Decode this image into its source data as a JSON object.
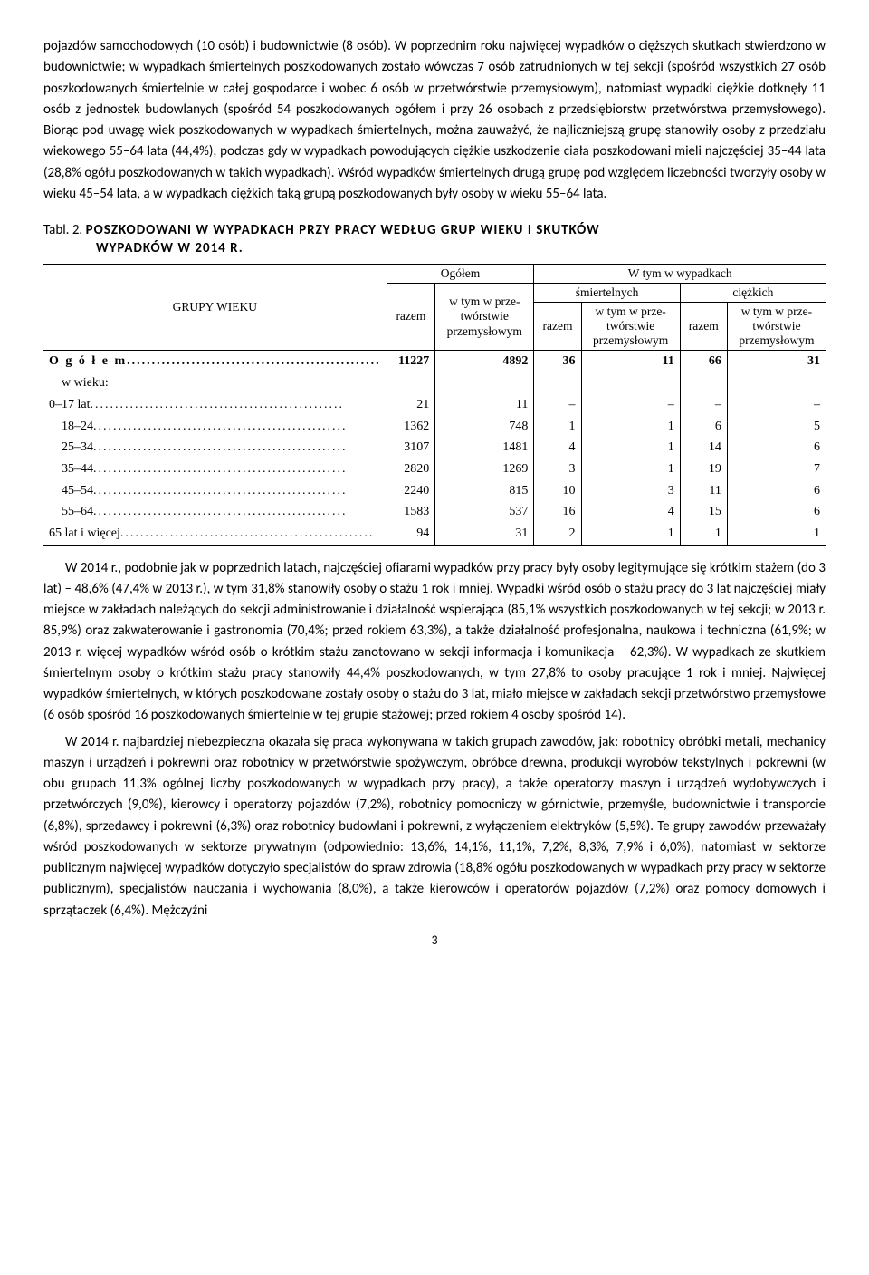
{
  "paragraph1": "pojazdów samochodowych (10 osób) i budownictwie (8 osób). W poprzednim roku najwięcej wypadków o cięższych skutkach stwierdzono w budownictwie; w wypadkach śmiertelnych poszkodowanych zostało wówczas 7 osób zatrudnionych w tej sekcji (spośród wszystkich 27 osób poszkodowanych śmiertelnie w całej gospodarce i wobec 6 osób w przetwórstwie przemysłowym), natomiast wypadki ciężkie dotknęły 11 osób z jednostek budowlanych (spośród 54 poszkodowanych ogółem i przy 26 osobach z przedsiębiorstw przetwórstwa przemysłowego). Biorąc pod uwagę wiek poszkodowanych w wypadkach śmiertelnych, można zauważyć, że najliczniejszą grupę stanowiły osoby z przedziału wiekowego 55–64 lata (44,4%), podczas gdy w wypadkach powodujących ciężkie uszkodzenie ciała poszkodowani mieli najczęściej 35–44 lata (28,8% ogółu poszkodowanych w takich wypadkach). Wśród wypadków śmiertelnych drugą grupę pod względem liczebności tworzyły osoby w wieku 45–54 lata, a w wypadkach ciężkich taką grupą poszkodowanych były osoby w wieku 55–64 lata.",
  "caption": {
    "prefix": "Tabl. 2.",
    "title_line1": "POSZKODOWANI W WYPADKACH PRZY PRACY WEDŁUG GRUP WIEKU I SKUTKÓW",
    "title_line2": "WYPADKÓW W 2014 R."
  },
  "table": {
    "col_label": "GRUPY WIEKU",
    "top_ogolem": "Ogółem",
    "top_wtym": "W tym w wypadkach",
    "sub_sm": "śmiertelnych",
    "sub_ci": "ciężkich",
    "razem": "razem",
    "wtym_prz": "w tym w prze-\ntwórstwie\nprzemysłowym",
    "rows": [
      {
        "label": "O g ó ł e m",
        "values": [
          "11227",
          "4892",
          "36",
          "11",
          "66",
          "31"
        ],
        "bold": true,
        "suffix": "w wieku:"
      },
      {
        "label": "0–17 lat",
        "values": [
          "21",
          "11",
          "–",
          "–",
          "–",
          "–"
        ]
      },
      {
        "label": "18–24",
        "values": [
          "1362",
          "748",
          "1",
          "1",
          "6",
          "5"
        ],
        "indent": true
      },
      {
        "label": "25–34",
        "values": [
          "3107",
          "1481",
          "4",
          "1",
          "14",
          "6"
        ],
        "indent": true
      },
      {
        "label": "35–44",
        "values": [
          "2820",
          "1269",
          "3",
          "1",
          "19",
          "7"
        ],
        "indent": true
      },
      {
        "label": "45–54",
        "values": [
          "2240",
          "815",
          "10",
          "3",
          "11",
          "6"
        ],
        "indent": true
      },
      {
        "label": "55–64",
        "values": [
          "1583",
          "537",
          "16",
          "4",
          "15",
          "6"
        ],
        "indent": true
      },
      {
        "label": "65 lat i więcej",
        "values": [
          "94",
          "31",
          "2",
          "1",
          "1",
          "1"
        ]
      }
    ]
  },
  "paragraph2": "W 2014 r., podobnie jak w poprzednich latach, najczęściej ofiarami wypadków przy pracy były osoby legitymujące się krótkim stażem (do 3 lat) – 48,6% (47,4% w 2013 r.), w tym 31,8% stanowiły osoby o stażu 1 rok i mniej. Wypadki wśród osób o stażu pracy do 3 lat najczęściej miały miejsce w zakładach należących do sekcji administrowanie i działalność wspierająca (85,1% wszystkich poszkodowanych w tej sekcji; w 2013 r. 85,9%) oraz zakwaterowanie i gastronomia (70,4%; przed rokiem 63,3%), a także działalność profesjonalna, naukowa i techniczna (61,9%; w 2013 r. więcej wypadków wśród osób o krótkim stażu zanotowano w sekcji informacja i komunikacja – 62,3%). W wypadkach ze skutkiem śmiertelnym osoby o krótkim stażu pracy stanowiły 44,4% poszkodowanych, w tym 27,8% to osoby pracujące 1 rok i mniej. Najwięcej wypadków śmiertelnych, w których poszkodowane zostały osoby o stażu do 3 lat, miało miejsce w zakładach sekcji przetwórstwo przemysłowe (6 osób spośród 16 poszkodowanych śmiertelnie w tej grupie stażowej; przed rokiem 4 osoby spośród 14).",
  "paragraph3": "W 2014 r. najbardziej niebezpieczna okazała się praca wykonywana w takich grupach zawodów, jak: robotnicy obróbki metali, mechanicy maszyn i urządzeń i pokrewni oraz robotnicy w przetwórstwie spożywczym, obróbce drewna, produkcji wyrobów tekstylnych i pokrewni (w obu grupach 11,3% ogólnej liczby poszkodowanych w wypadkach przy pracy), a także operatorzy maszyn i urządzeń wydobywczych i przetwórczych (9,0%), kierowcy i operatorzy pojazdów (7,2%), robotnicy pomocniczy w górnictwie, przemyśle, budownictwie i transporcie (6,8%), sprzedawcy i pokrewni (6,3%) oraz robotnicy budowlani i pokrewni, z wyłączeniem elektryków (5,5%). Te grupy zawodów przeważały wśród poszkodowanych w sektorze prywatnym (odpowiednio: 13,6%, 14,1%, 11,1%, 7,2%, 8,3%, 7,9% i 6,0%), natomiast w sektorze publicznym najwięcej wypadków dotyczyło specjalistów do spraw zdrowia (18,8% ogółu poszkodowanych w wypadkach przy pracy w sektorze publicznym), specjalistów nauczania i wychowania (8,0%), a także kierowców i operatorów pojazdów (7,2%) oraz pomocy domowych i sprzątaczek (6,4%). Mężczyźni",
  "page_number": "3"
}
